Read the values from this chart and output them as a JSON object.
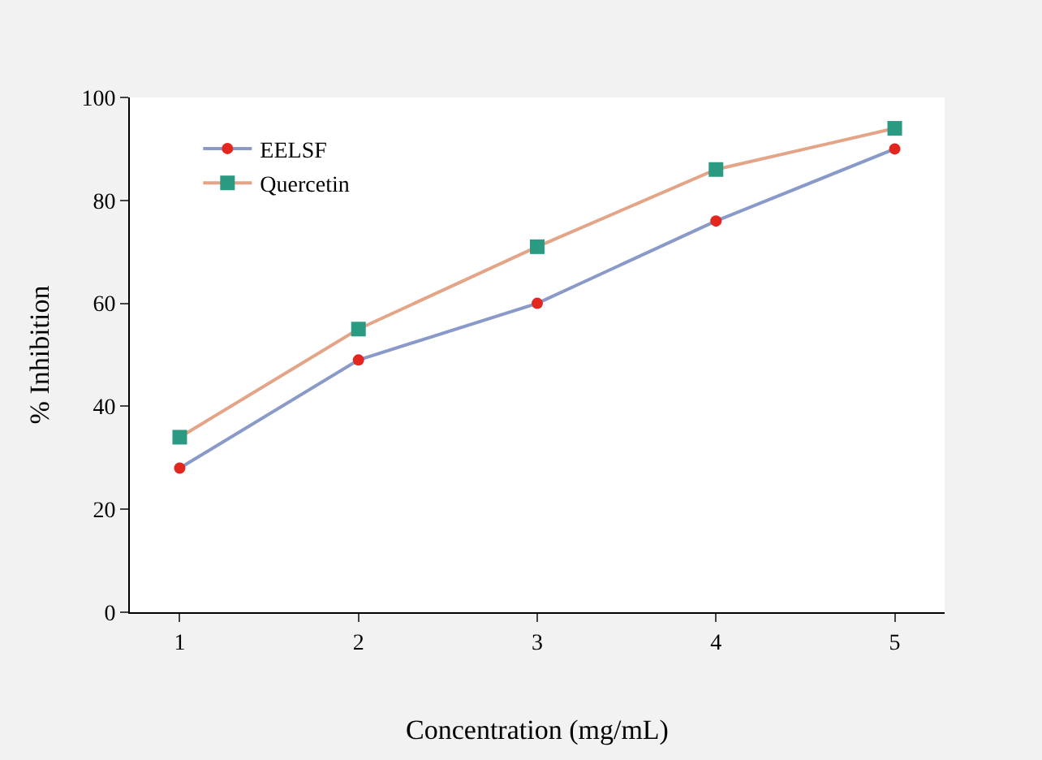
{
  "chart_data": {
    "type": "line",
    "xlabel": "Concentration (mg/mL)",
    "ylabel": "% Inhibition",
    "categories": [
      "1",
      "2",
      "3",
      "4",
      "5"
    ],
    "ylim": [
      0,
      100
    ],
    "yticks": [
      0,
      20,
      40,
      60,
      80,
      100
    ],
    "legend": "top left",
    "series": [
      {
        "name": "EELSF",
        "color": "#8a9ac8",
        "colors": [
          "#e3261e",
          "#e3261e",
          "#e3261e",
          "#e3261e",
          "#e3261e"
        ],
        "marker": "circle",
        "values": [
          28,
          49,
          60,
          76,
          90
        ]
      },
      {
        "name": "Quercetin",
        "color": "#e3a487",
        "colors": [
          "#2a9a82",
          "#2a9a82",
          "#2a9a82",
          "#2a9a82",
          "#2a9a82"
        ],
        "marker": "square",
        "values": [
          34,
          55,
          71,
          86,
          94
        ]
      }
    ]
  }
}
